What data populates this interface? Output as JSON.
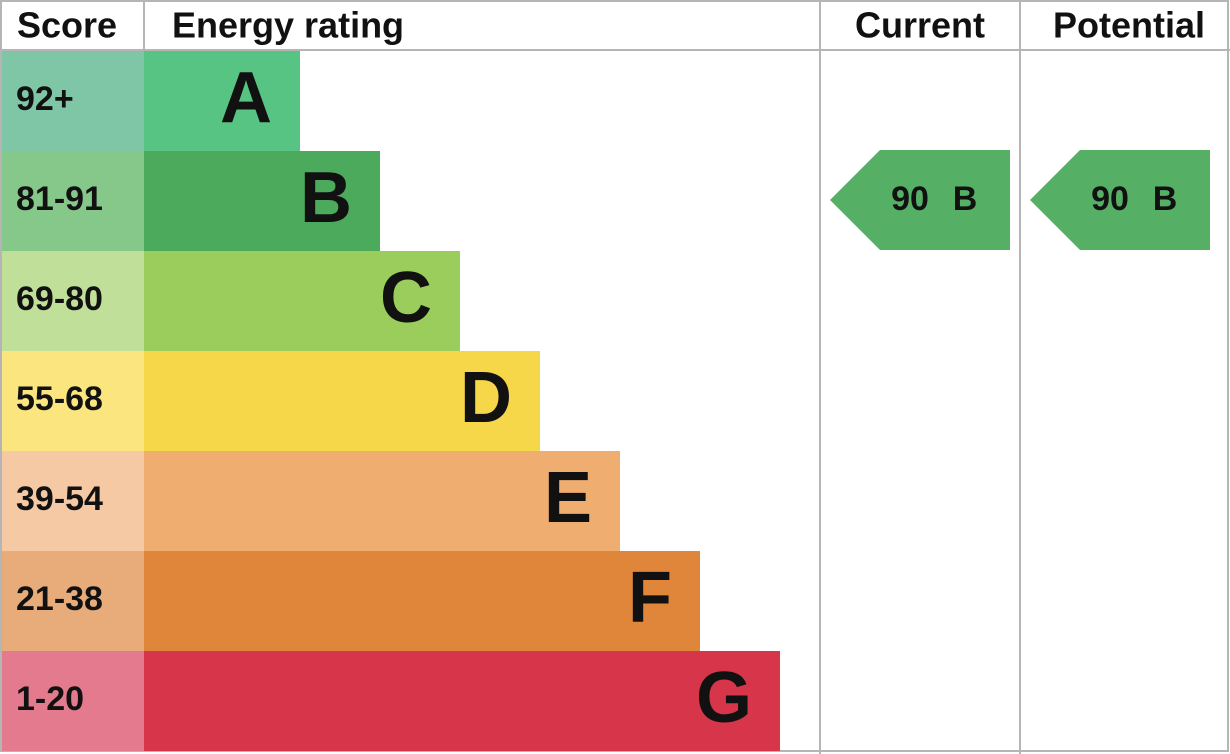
{
  "header": {
    "score": "Score",
    "rating": "Energy rating",
    "current": "Current",
    "potential": "Potential"
  },
  "rows": [
    {
      "score": "92+",
      "letter": "A",
      "color": "#57c483",
      "score_color": "#7fc6a6"
    },
    {
      "score": "81-91",
      "letter": "B",
      "color": "#4caa5c",
      "score_color": "#85c88a"
    },
    {
      "score": "69-80",
      "letter": "C",
      "color": "#9acd5c",
      "score_color": "#c0df99"
    },
    {
      "score": "55-68",
      "letter": "D",
      "color": "#f7d74a",
      "score_color": "#fbe57f"
    },
    {
      "score": "39-54",
      "letter": "E",
      "color": "#efad70",
      "score_color": "#f4c9a3"
    },
    {
      "score": "21-38",
      "letter": "F",
      "color": "#e0863b",
      "score_color": "#e8ab7a"
    },
    {
      "score": "1-20",
      "letter": "G",
      "color": "#d6354a",
      "score_color": "#e37a8e"
    }
  ],
  "current": {
    "value": 90,
    "letter": "B",
    "color": "#55b066"
  },
  "potential": {
    "value": 90,
    "letter": "B",
    "color": "#55b066"
  }
}
